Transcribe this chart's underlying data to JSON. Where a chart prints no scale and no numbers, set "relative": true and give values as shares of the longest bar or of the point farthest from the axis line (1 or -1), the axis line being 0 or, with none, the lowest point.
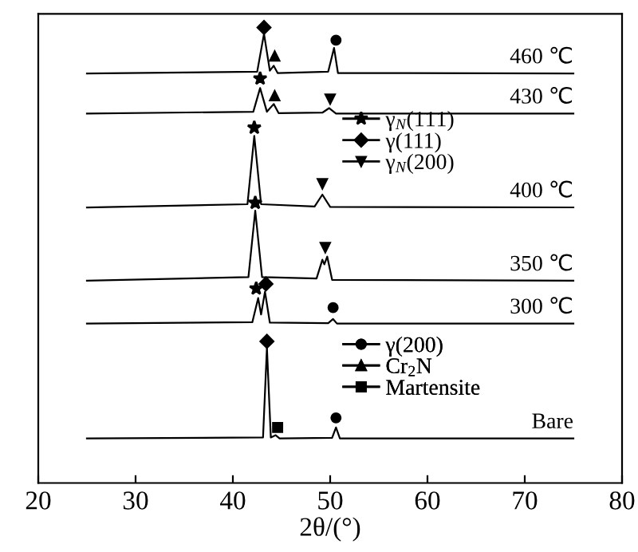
{
  "chart_data": {
    "type": "line",
    "relative": true,
    "xlabel": "2θ/(°)",
    "xlim": [
      20,
      80
    ],
    "xticks": [
      20,
      30,
      40,
      50,
      60,
      70,
      80
    ],
    "legend": "right",
    "grid": false,
    "tick_labels": "x",
    "series": [
      {
        "name": "460 ℃",
        "color": "#000000",
        "x": [
          25,
          42.5,
          43.2,
          43.8,
          44.2,
          44.6,
          49.8,
          50.4,
          50.8,
          75
        ],
        "values": [
          0.899,
          0.903,
          0.986,
          0.905,
          0.916,
          0.9,
          0.903,
          0.955,
          0.9,
          0.899
        ]
      },
      {
        "name": "430 ℃",
        "color": "#000000",
        "x": [
          25,
          42.1,
          42.8,
          43.5,
          44.2,
          44.7,
          49.2,
          49.9,
          50.6,
          75
        ],
        "values": [
          0.811,
          0.815,
          0.867,
          0.815,
          0.832,
          0.812,
          0.813,
          0.823,
          0.811,
          0.811
        ]
      },
      {
        "name": "400 ℃",
        "color": "#000000",
        "x": [
          25,
          41.5,
          42.2,
          42.9,
          48.4,
          49.2,
          50.0,
          75
        ],
        "values": [
          0.605,
          0.612,
          0.762,
          0.612,
          0.607,
          0.633,
          0.606,
          0.605
        ]
      },
      {
        "name": "350 ℃",
        "color": "#000000",
        "x": [
          25,
          41.6,
          42.3,
          43.0,
          48.6,
          49.2,
          49.4,
          49.7,
          50.2,
          75
        ],
        "values": [
          0.444,
          0.452,
          0.598,
          0.452,
          0.449,
          0.49,
          0.48,
          0.497,
          0.446,
          0.444
        ]
      },
      {
        "name": "300 ℃",
        "color": "#000000",
        "x": [
          25,
          42.0,
          42.6,
          42.9,
          43.3,
          43.8,
          49.8,
          50.3,
          50.7,
          75
        ],
        "values": [
          0.35,
          0.353,
          0.406,
          0.37,
          0.42,
          0.352,
          0.351,
          0.36,
          0.35,
          0.35
        ]
      },
      {
        "name": "Bare",
        "color": "#000000",
        "x": [
          25,
          43.1,
          43.5,
          43.9,
          44.4,
          44.8,
          50.2,
          50.6,
          51.0,
          75
        ],
        "values": [
          0.098,
          0.1,
          0.297,
          0.1,
          0.105,
          0.098,
          0.099,
          0.122,
          0.098,
          0.098
        ]
      },
      {
        "name": "γ$_{N}$(111)",
        "type": "scatter",
        "marker": "star",
        "color": "#000000",
        "x": [
          42.8,
          42.2,
          42.3,
          42.4
        ],
        "values": [
          0.888,
          0.78,
          0.615,
          0.427
        ]
      },
      {
        "name": "γ(111)",
        "type": "scatter",
        "marker": "diamond",
        "color": "#000000",
        "x": [
          43.2,
          43.4,
          43.5
        ],
        "values": [
          1.0,
          0.437,
          0.311
        ]
      },
      {
        "name": "γ$_{N}$(200)",
        "type": "scatter",
        "marker": "triangle_down",
        "color": "#000000",
        "x": [
          50.0,
          49.2,
          49.5
        ],
        "values": [
          0.843,
          0.657,
          0.517
        ]
      },
      {
        "name": "γ(200)",
        "type": "scatter",
        "marker": "circle",
        "color": "#000000",
        "x": [
          50.6,
          50.3,
          50.6
        ],
        "values": [
          0.972,
          0.385,
          0.143
        ]
      },
      {
        "name": "Cr$_{2}$N",
        "type": "scatter",
        "marker": "triangle",
        "color": "#000000",
        "x": [
          44.3,
          44.3
        ],
        "values": [
          0.937,
          0.85
        ]
      },
      {
        "name": "Martensite",
        "type": "scatter",
        "marker": "square",
        "color": "#000000",
        "x": [
          44.6
        ],
        "values": [
          0.122
        ]
      }
    ]
  }
}
